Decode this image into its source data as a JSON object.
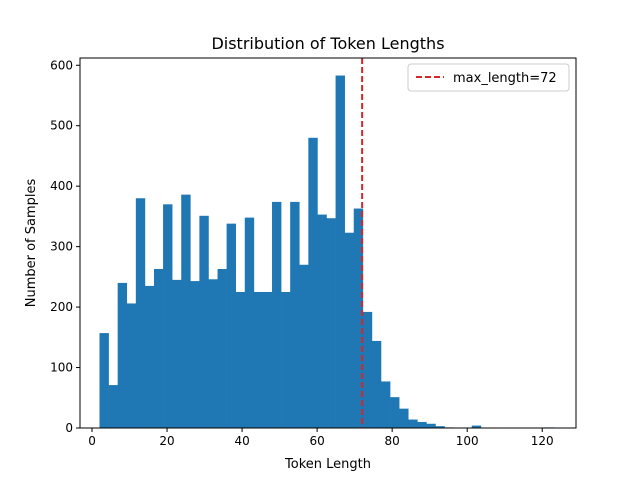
{
  "chart_data": {
    "type": "bar",
    "title": "Distribution of Token Lengths",
    "xlabel": "Token Length",
    "ylabel": "Number of Samples",
    "xlim": [
      -3.2,
      129
    ],
    "ylim": [
      0,
      612
    ],
    "xticks": [
      0,
      20,
      40,
      60,
      80,
      100,
      120
    ],
    "yticks": [
      0,
      100,
      200,
      300,
      400,
      500,
      600
    ],
    "grid": false,
    "legend_position": "top-right",
    "bar_color": "#1f77b4",
    "bin_start": 2,
    "bin_width": 2.42,
    "values": [
      157,
      71,
      240,
      206,
      380,
      235,
      263,
      370,
      245,
      386,
      243,
      351,
      246,
      263,
      338,
      225,
      348,
      225,
      225,
      374,
      225,
      374,
      270,
      480,
      353,
      347,
      583,
      323,
      363,
      192,
      144,
      77,
      51,
      32,
      14,
      10,
      7,
      3,
      1,
      0,
      0,
      4,
      0,
      0,
      0,
      0,
      0,
      0,
      0,
      1
    ],
    "reference_line": {
      "x": 72,
      "label": "max_length=72",
      "color": "#d62728",
      "style": "dashed"
    }
  }
}
